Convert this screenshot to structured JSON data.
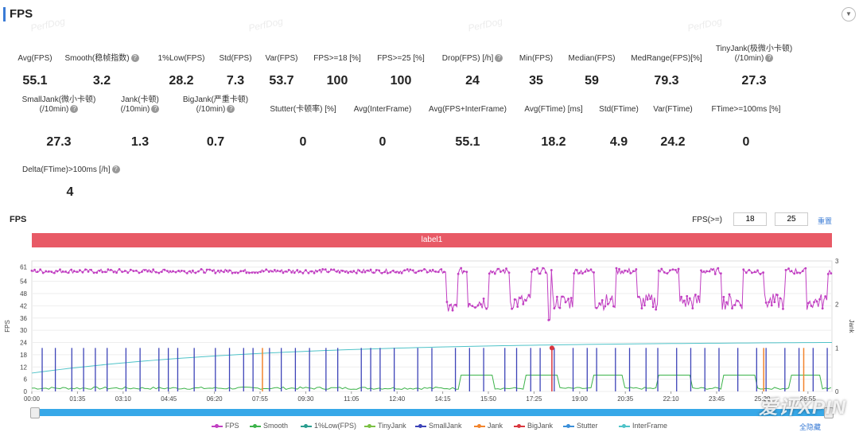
{
  "header": {
    "title": "FPS",
    "collapse_icon": "chevron-down-icon"
  },
  "watermark": "PerfDog",
  "metrics": [
    {
      "label": "Avg(FPS)",
      "value": "55.1",
      "help": false
    },
    {
      "label": "Smooth(稳帧指数)",
      "value": "3.2",
      "help": true
    },
    {
      "label": "1%Low(FPS)",
      "value": "28.2",
      "help": false
    },
    {
      "label": "Std(FPS)",
      "value": "7.3",
      "help": false
    },
    {
      "label": "Var(FPS)",
      "value": "53.7",
      "help": false
    },
    {
      "label": "FPS>=18 [%]",
      "value": "100",
      "help": false
    },
    {
      "label": "FPS>=25 [%]",
      "value": "100",
      "help": false
    },
    {
      "label": "Drop(FPS) [/h]",
      "value": "24",
      "help": true
    },
    {
      "label": "Min(FPS)",
      "value": "35",
      "help": false
    },
    {
      "label": "Median(FPS)",
      "value": "59",
      "help": false
    },
    {
      "label": "MedRange(FPS)[%]",
      "value": "79.3",
      "help": false
    },
    {
      "label": "TinyJank(极微小卡顿)",
      "label2": "(/10min)",
      "value": "27.3",
      "help": true
    },
    {
      "label": "SmallJank(微小卡顿)",
      "label2": "(/10min)",
      "value": "27.3",
      "help": true
    },
    {
      "label": "Jank(卡顿)",
      "label2": "(/10min)",
      "value": "1.3",
      "help": true
    },
    {
      "label": "BigJank(严重卡顿)",
      "label2": "(/10min)",
      "value": "0.7",
      "help": true
    },
    {
      "label": "Stutter(卡顿率) [%]",
      "value": "0",
      "help": false
    },
    {
      "label": "Avg(InterFrame)",
      "value": "0",
      "help": false
    },
    {
      "label": "Avg(FPS+InterFrame)",
      "value": "55.1",
      "help": false
    },
    {
      "label": "Avg(FTime) [ms]",
      "value": "18.2",
      "help": false
    },
    {
      "label": "Std(FTime)",
      "value": "4.9",
      "help": false
    },
    {
      "label": "Var(FTime)",
      "value": "24.2",
      "help": false
    },
    {
      "label": "FTime>=100ms [%]",
      "value": "0",
      "help": false
    },
    {
      "label": "Delta(FTime)>100ms [/h]",
      "value": "4",
      "help": true
    }
  ],
  "chart_section": {
    "title": "FPS",
    "threshold_label": "FPS(>=)",
    "threshold_1": "18",
    "threshold_2": "25",
    "reset_label": "重置",
    "band_label": "label1",
    "hide_all_label": "全隐藏"
  },
  "brand_watermark": "爱评XPIN",
  "colors": {
    "accent": "#3a7bd5",
    "band": "#e85a66",
    "fps": "#c13fc2",
    "smooth": "#3cb34a",
    "low1": "#2a9d8f",
    "tinyjank": "#7bc043",
    "smalljank": "#3d44b8",
    "jank": "#f2842c",
    "bigjank": "#d9363e",
    "stutter": "#3b8fd9",
    "interframe": "#4fc3c8",
    "slider": "#37a8e8"
  },
  "legend": [
    {
      "name": "FPS",
      "color": "#c13fc2"
    },
    {
      "name": "Smooth",
      "color": "#3cb34a"
    },
    {
      "name": "1%Low(FPS)",
      "color": "#2a9d8f"
    },
    {
      "name": "TinyJank",
      "color": "#7bc043"
    },
    {
      "name": "SmallJank",
      "color": "#3d44b8"
    },
    {
      "name": "Jank",
      "color": "#f2842c"
    },
    {
      "name": "BigJank",
      "color": "#d9363e"
    },
    {
      "name": "Stutter",
      "color": "#3b8fd9"
    },
    {
      "name": "InterFrame",
      "color": "#4fc3c8"
    }
  ],
  "chart_data": {
    "type": "line",
    "title": "",
    "xlabel": "",
    "ylabel": "FPS",
    "y2label": "Jank",
    "x_ticks": [
      "00:00",
      "01:35",
      "03:10",
      "04:45",
      "06:20",
      "07:55",
      "09:30",
      "11:05",
      "12:40",
      "14:15",
      "15:50",
      "17:25",
      "19:00",
      "20:35",
      "22:10",
      "23:45",
      "25:20",
      "26:55"
    ],
    "y_ticks": [
      0,
      6,
      12,
      18,
      24,
      30,
      36,
      42,
      48,
      54,
      61
    ],
    "y2_ticks": [
      0,
      1,
      2,
      3
    ],
    "ylim": [
      0,
      64
    ],
    "y2lim": [
      0,
      3
    ],
    "x_range_sec": [
      0,
      1700
    ],
    "series": [
      {
        "name": "FPS",
        "segments": [
          {
            "from_sec": 0,
            "to_sec": 880,
            "level": 59
          },
          {
            "from_sec": 880,
            "to_sec": 1700,
            "pattern": "alternating",
            "high": 59,
            "low_range": [
              36,
              48
            ]
          }
        ],
        "min": 35
      },
      {
        "name": "1%Low(FPS)",
        "start": 9,
        "end": 24
      },
      {
        "name": "Smooth",
        "level_before": 1,
        "level_after": 8
      },
      {
        "name": "SmallJank",
        "events_sec": [
          22,
          50,
          85,
          110,
          135,
          160,
          200,
          230,
          270,
          290,
          310,
          345,
          390,
          420,
          450,
          470,
          505,
          530,
          560,
          590,
          625,
          650,
          700,
          720,
          740,
          770,
          820,
          850,
          900,
          930,
          960,
          1005,
          1030,
          1060,
          1080,
          1110,
          1150,
          1180,
          1200,
          1240,
          1270,
          1305,
          1330,
          1370,
          1400,
          1430,
          1460,
          1500,
          1540,
          1560,
          1600,
          1630,
          1660,
          1690
        ]
      },
      {
        "name": "Jank",
        "events_sec": [
          490,
          1555,
          1640
        ]
      },
      {
        "name": "BigJank",
        "events_sec": [
          1105
        ]
      }
    ]
  }
}
